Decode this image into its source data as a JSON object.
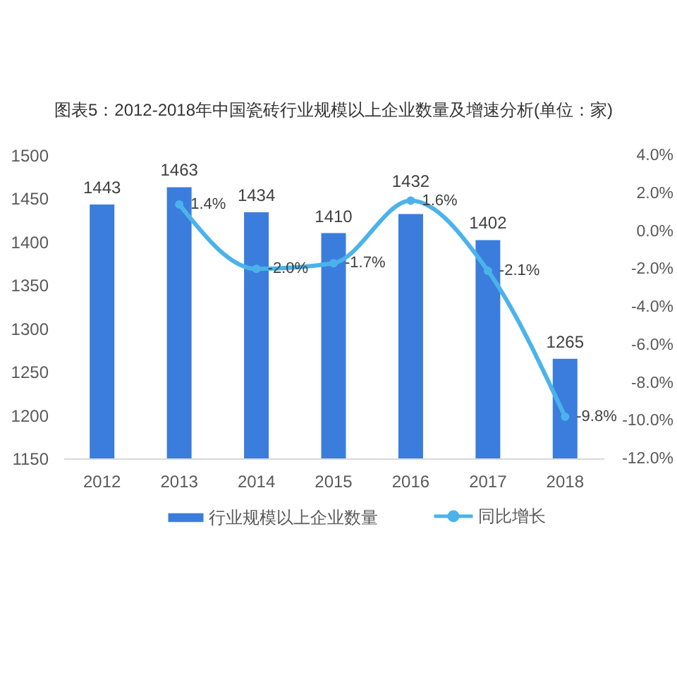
{
  "chart_data": {
    "type": "bar",
    "title": "图表5：2012-2018年中国瓷砖行业规模以上企业数量及增速分析(单位：家)",
    "categories": [
      "2012",
      "2013",
      "2014",
      "2015",
      "2016",
      "2017",
      "2018"
    ],
    "series": [
      {
        "name": "行业规模以上企业数量",
        "type": "bar",
        "color": "#3b7ddd",
        "values": [
          1443,
          1463,
          1434,
          1410,
          1432,
          1402,
          1265
        ],
        "value_labels": [
          "1443",
          "1463",
          "1434",
          "1410",
          "1432",
          "1402",
          "1265"
        ]
      },
      {
        "name": "同比增长",
        "type": "line",
        "axis": "y2",
        "color": "#4cb3ea",
        "values": [
          null,
          1.4,
          -2.0,
          -1.7,
          1.6,
          -2.1,
          -9.8
        ],
        "value_labels": [
          null,
          "1.4%",
          "-2.0%",
          "-1.7%",
          "1.6%",
          "-2.1%",
          "-9.8%"
        ]
      }
    ],
    "ylim": [
      1150,
      1500
    ],
    "yticks": [
      1150,
      1200,
      1250,
      1300,
      1350,
      1400,
      1450,
      1500
    ],
    "y2lim": [
      -12,
      4
    ],
    "y2ticks": [
      {
        "value": -12,
        "label": "-12.0%"
      },
      {
        "value": -10,
        "label": "-10.0%"
      },
      {
        "value": -8,
        "label": "-8.0%"
      },
      {
        "value": -6,
        "label": "-6.0%"
      },
      {
        "value": -4,
        "label": "-4.0%"
      },
      {
        "value": -2,
        "label": "-2.0%"
      },
      {
        "value": 0,
        "label": "0.0%"
      },
      {
        "value": 2,
        "label": "2.0%"
      },
      {
        "value": 4,
        "label": "4.0%"
      }
    ],
    "marker": "circle",
    "legend": "bottom",
    "grid": false
  }
}
